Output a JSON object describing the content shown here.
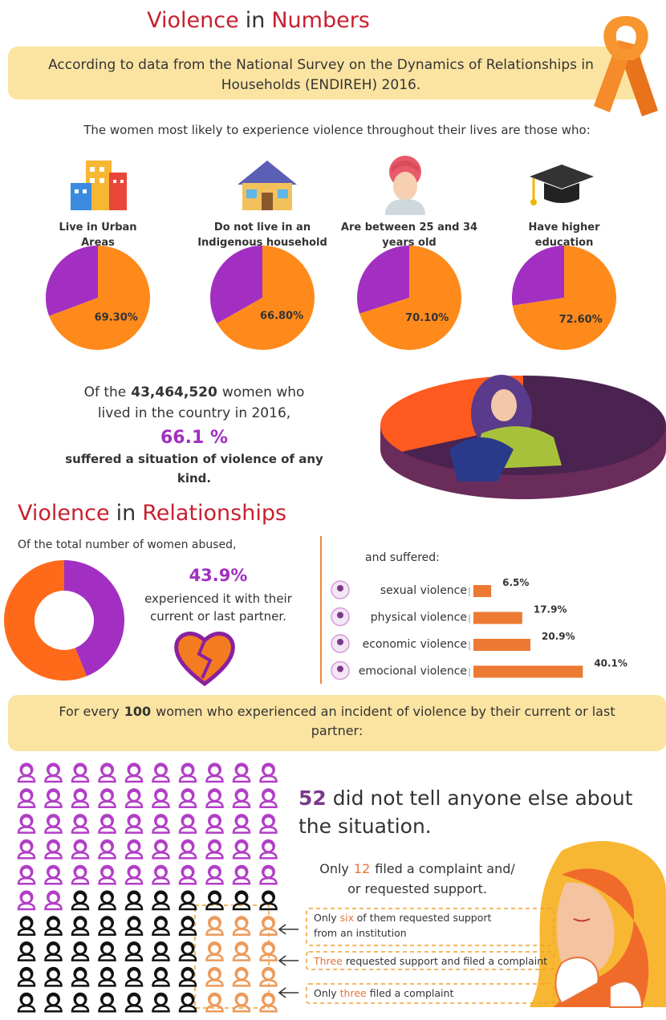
{
  "header": {
    "title": {
      "word1": "Violence",
      "word2": "in",
      "word3": "Numbers"
    },
    "source_lines": [
      "According to data from the National Survey on the Dynamics of Relationships in",
      "Households (ENDIREH) 2016."
    ]
  },
  "intro": "The women most likely to experience violence throughout their lives are those who:",
  "profiles": [
    {
      "label_lines": [
        "Live in Urban",
        "Areas"
      ],
      "value": 69.3,
      "value_label": "69.30%"
    },
    {
      "label_lines": [
        "Do not live in an",
        "Indigenous household"
      ],
      "value": 66.8,
      "value_label": "66.80%"
    },
    {
      "label_lines": [
        "Are between 25 and 34",
        "years old"
      ],
      "value": 70.1,
      "value_label": "70.10%"
    },
    {
      "label_lines": [
        "Have higher",
        "education"
      ],
      "value": 72.6,
      "value_label": "72.60%"
    }
  ],
  "overall": {
    "line1_start": "Of the",
    "count": "43,464,520",
    "line1_end": "women who",
    "line2": "lived in the country in 2016,",
    "value": 66.1,
    "value_label": "66.1 %",
    "line3": "suffered a situation of violence of any",
    "line4": "kind."
  },
  "relationships": {
    "title": {
      "word1": "Violence",
      "word2": "in",
      "word3": "Relationships"
    },
    "lead": "Of the total number of women abused,",
    "value": 43.9,
    "value_label": "43.9%",
    "text_lines": [
      "experienced it with their",
      "current or last partner."
    ],
    "types_lead": "and suffered:",
    "types": [
      {
        "name": "sexual violence",
        "value": 6.5,
        "value_label": "6.5%"
      },
      {
        "name": "physical violence",
        "value": 17.9,
        "value_label": "17.9%"
      },
      {
        "name": "economic violence",
        "value": 20.9,
        "value_label": "20.9%"
      },
      {
        "name": "emocional violence",
        "value": 40.1,
        "value_label": "40.1%"
      }
    ]
  },
  "partner_incidents": {
    "lead_start": "For every",
    "total": 100,
    "lead_end_lines": [
      "women who experienced an incident of violence by their current or last",
      "partner:"
    ],
    "told_no_one": {
      "count": 52,
      "text_lines": [
        "did not tell anyone else about",
        "the situation."
      ]
    },
    "sought_help": {
      "prefix": "Only",
      "count": 12,
      "text_lines": [
        "filed a complaint and/",
        "or requested support."
      ]
    },
    "breakdown": [
      {
        "lines": [
          [
            {
              "text": "Only"
            },
            {
              "text": "six",
              "highlight": true
            },
            {
              "text": "of them requested support"
            }
          ],
          [
            {
              "text": "from an institution"
            }
          ]
        ]
      },
      {
        "lines": [
          [
            {
              "text": "Three",
              "highlight": true
            },
            {
              "text": "requested support and filed a complaint"
            }
          ]
        ]
      },
      {
        "lines": [
          [
            {
              "text": "Only"
            },
            {
              "text": "three",
              "highlight": true
            },
            {
              "text": "filed a complaint"
            }
          ]
        ]
      }
    ]
  }
}
